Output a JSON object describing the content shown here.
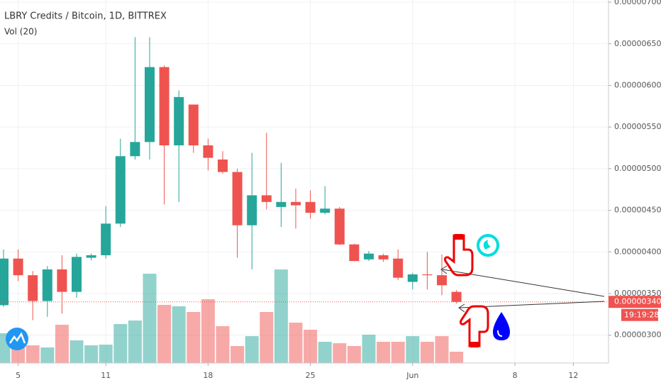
{
  "chart_data": {
    "type": "candlestick",
    "title": "LBRY Credits / Bitcoin, 1D, BITTREX",
    "volume_label": "Vol (20)",
    "countdown": "19:19:28",
    "last_price_label": "0.00000340",
    "up_color": "#26a69a",
    "down_color": "#ef5350",
    "categories": [
      "May 4",
      "May 5",
      "May 6",
      "May 7",
      "May 8",
      "May 9",
      "May 10",
      "May 11",
      "May 12",
      "May 13",
      "May 14",
      "May 15",
      "May 16",
      "May 17",
      "May 18",
      "May 19",
      "May 20",
      "May 21",
      "May 22",
      "May 23",
      "May 24",
      "May 25",
      "May 26",
      "May 27",
      "May 28",
      "May 29",
      "May 30",
      "May 31",
      "Jun 1",
      "Jun 2",
      "Jun 3",
      "Jun 4"
    ],
    "open": [
      3.36e-06,
      3.92e-06,
      3.72e-06,
      3.41e-06,
      3.79e-06,
      3.52e-06,
      3.93e-06,
      3.96e-06,
      4.34e-06,
      5.15e-06,
      5.32e-06,
      6.22e-06,
      5.28e-06,
      5.77e-06,
      5.28e-06,
      5.11e-06,
      4.96e-06,
      4.32e-06,
      4.68e-06,
      4.54e-06,
      4.6e-06,
      4.6e-06,
      4.47e-06,
      4.52e-06,
      4.09e-06,
      3.91e-06,
      3.96e-06,
      3.92e-06,
      3.64e-06,
      3.73e-06,
      3.72e-06,
      3.52e-06
    ],
    "high": [
      4.03e-06,
      4.03e-06,
      3.77e-06,
      3.83e-06,
      3.96e-06,
      3.98e-06,
      3.98e-06,
      4.55e-06,
      5.36e-06,
      6.58e-06,
      6.58e-06,
      6.24e-06,
      5.94e-06,
      5.77e-06,
      5.36e-06,
      5.21e-06,
      5e-06,
      5.19e-06,
      5.43e-06,
      5.07e-06,
      4.76e-06,
      4.74e-06,
      4.79e-06,
      4.54e-06,
      4.1e-06,
      4.01e-06,
      3.98e-06,
      4.03e-06,
      3.75e-06,
      4e-06,
      3.97e-06,
      3.54e-06
    ],
    "low": [
      3.34e-06,
      3.65e-06,
      3.18e-06,
      3.22e-06,
      3.26e-06,
      3.45e-06,
      3.9e-06,
      3.92e-06,
      4.3e-06,
      5.11e-06,
      5.11e-06,
      4.57e-06,
      4.6e-06,
      5.19e-06,
      4.98e-06,
      4.94e-06,
      3.93e-06,
      3.79e-06,
      4.51e-06,
      4.3e-06,
      4.28e-06,
      4.4e-06,
      4.45e-06,
      4.08e-06,
      3.89e-06,
      3.89e-06,
      3.88e-06,
      3.66e-06,
      3.55e-06,
      3.55e-06,
      3.48e-06,
      3.38e-06
    ],
    "close": [
      3.92e-06,
      3.72e-06,
      3.41e-06,
      3.79e-06,
      3.52e-06,
      3.94e-06,
      3.96e-06,
      4.34e-06,
      5.15e-06,
      5.32e-06,
      6.22e-06,
      5.28e-06,
      5.86e-06,
      5.28e-06,
      5.13e-06,
      4.96e-06,
      4.32e-06,
      4.68e-06,
      4.6e-06,
      4.6e-06,
      4.56e-06,
      4.47e-06,
      4.52e-06,
      4.09e-06,
      3.89e-06,
      3.98e-06,
      3.91e-06,
      3.69e-06,
      3.73e-06,
      3.72e-06,
      3.6e-06,
      3.4e-06
    ],
    "volume": [
      42,
      34,
      25,
      22,
      54,
      32,
      25,
      26,
      55,
      60,
      126,
      82,
      80,
      72,
      90,
      52,
      24,
      38,
      72,
      132,
      57,
      47,
      30,
      28,
      24,
      40,
      30,
      30,
      38,
      30,
      38,
      16
    ],
    "ylim": [
      2.665e-06,
      7.026e-06
    ],
    "yticks": [
      {
        "value": 3e-06,
        "label": "0.00000300"
      },
      {
        "value": 3.5e-06,
        "label": "0.00000350"
      },
      {
        "value": 4e-06,
        "label": "0.00000400"
      },
      {
        "value": 4.5e-06,
        "label": "0.00000450"
      },
      {
        "value": 5e-06,
        "label": "0.00000500"
      },
      {
        "value": 5.5e-06,
        "label": "0.00000550"
      },
      {
        "value": 6e-06,
        "label": "0.00000600"
      },
      {
        "value": 6.5e-06,
        "label": "0.00000650"
      },
      {
        "value": 7e-06,
        "label": "0.00000700"
      }
    ],
    "xticks": [
      {
        "value": "May 5",
        "label": "5"
      },
      {
        "value": "May 11",
        "label": "11"
      },
      {
        "value": "May 18",
        "label": "18"
      },
      {
        "value": "May 25",
        "label": "25"
      },
      {
        "value": "Jun 1",
        "label": "Jun"
      },
      {
        "value": "Jun 8",
        "label": "8"
      },
      {
        "value": "Jun 12",
        "label": "12"
      }
    ],
    "grid": true
  }
}
